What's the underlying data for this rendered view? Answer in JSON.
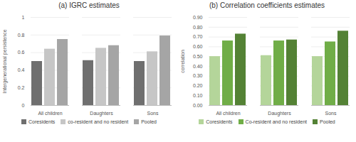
{
  "chart_data": [
    {
      "type": "bar",
      "title": "(a) IGRC estimates",
      "y_label": "Intergenerational persistence",
      "categories": [
        "All children",
        "Daughters",
        "Sons"
      ],
      "series": [
        {
          "name": "Coresidents",
          "color": "#6f6f6f",
          "values": [
            0.5,
            0.51,
            0.5
          ]
        },
        {
          "name": "co-resident and no resident",
          "color": "#c6c6c6",
          "values": [
            0.64,
            0.65,
            0.61
          ]
        },
        {
          "name": "Pooled",
          "color": "#a5a5a5",
          "values": [
            0.75,
            0.68,
            0.79
          ]
        }
      ],
      "ylim": [
        0,
        1
      ],
      "yticks": [
        0,
        0.2,
        0.4,
        0.6,
        0.8,
        1
      ],
      "grid": true,
      "legend": "bottom"
    },
    {
      "type": "bar",
      "title": "(b) Correlation coefficients estimates",
      "y_label": "correlation",
      "categories": [
        "All children",
        "Daughters",
        "Sons"
      ],
      "series": [
        {
          "name": "Coresidents",
          "color": "#b4d59a",
          "values": [
            0.5,
            0.51,
            0.5
          ]
        },
        {
          "name": "Co-resident and no resident",
          "color": "#70ad47",
          "values": [
            0.66,
            0.66,
            0.65
          ]
        },
        {
          "name": "Pooled",
          "color": "#548235",
          "values": [
            0.73,
            0.67,
            0.76
          ]
        }
      ],
      "ylim": [
        0,
        0.9
      ],
      "yticks": [
        {
          "value": 0,
          "label": "0.00"
        },
        {
          "value": 0.1,
          "label": "0.10"
        },
        {
          "value": 0.2,
          "label": "0.20"
        },
        {
          "value": 0.3,
          "label": "0.30"
        },
        {
          "value": 0.4,
          "label": "0.40"
        },
        {
          "value": 0.5,
          "label": "0.50"
        },
        {
          "value": 0.6,
          "label": "0.60"
        },
        {
          "value": 0.7,
          "label": "0.70"
        },
        {
          "value": 0.8,
          "label": "0.80"
        },
        {
          "value": 0.9,
          "label": "0.90"
        }
      ],
      "grid": true,
      "legend": "bottom"
    }
  ]
}
